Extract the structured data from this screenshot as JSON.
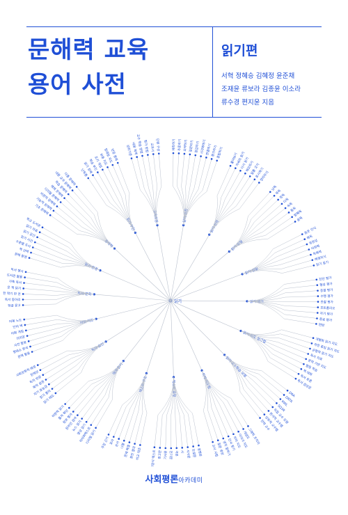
{
  "book": {
    "title_lines": [
      "문해력 교육",
      "용어 사전"
    ],
    "subtitle": "읽기편",
    "author_lines": [
      "서혁 정혜승 김혜정 윤준채",
      "조재윤 류보라 김종윤 이소라",
      "류수경 편지윤 지음"
    ],
    "publisher_main": "사회평론",
    "publisher_sub": "아카데미"
  },
  "colors": {
    "brand": "#1f4fd6",
    "branch_line": "#b8bfcc",
    "background": "#ffffff"
  },
  "diagram": {
    "root": "읽기",
    "branches": [
      {
        "label": "읽기 과정",
        "leaves": [
          "예측하기",
          "추론하기",
          "요약하기",
          "질문하기",
          "점검하기",
          "시각화하기",
          "연결하기",
          "평가하기",
          "종합하기"
        ]
      },
      {
        "label": "읽기 전략",
        "leaves": [
          "훑어보기",
          "자세히 읽기",
          "다시 읽기",
          "메모하기",
          "밑줄 긋기",
          "표시하기",
          "정리하기"
        ]
      },
      {
        "label": "읽기 유형",
        "leaves": [
          "낭독",
          "묵독",
          "정독",
          "다독",
          "속독",
          "통독",
          "발췌독",
          "윤독"
        ]
      },
      {
        "label": "읽기 발달",
        "leaves": [
          "음운 인식",
          "해독",
          "유창성",
          "어휘력",
          "독해력",
          "배경지식",
          "읽기 동기"
        ]
      },
      {
        "label": "읽기 평가",
        "leaves": [
          "진단 평가",
          "형성 평가",
          "총괄 평가",
          "수행 평가",
          "관찰 평가",
          "포트폴리오",
          "자기 평가",
          "동료 평가",
          "면담"
        ]
      },
      {
        "label": "읽기 지도 접근법",
        "leaves": [
          "개별화 읽기 지도",
          "과정 중심 읽기 지도",
          "균형적 읽기 지도",
          "독서 치료",
          "문학 기반 지도",
          "협동 학습",
          "책 대화",
          "독서 토론",
          "독서 감상문"
        ]
      },
      {
        "label": "읽기 교수학습 모형",
        "leaves": [
          "DRA",
          "DRTA",
          "KWL",
          "SQ3R",
          "직접 교수 모형",
          "현시적 교수법",
          "상보적 교수법",
          "전략 교수"
        ]
      },
      {
        "label": "이해 지도법",
        "leaves": [
          "그래픽 조직자",
          "개념도",
          "이야기 지도",
          "의미 지도",
          "단서 찾기",
          "생각 말하기",
          "질문 생성",
          "교사 시범"
        ]
      },
      {
        "label": "텍스트 유형",
        "leaves": [
          "설명문",
          "논설문",
          "서사문",
          "시",
          "극본",
          "전기문",
          "기사문",
          "광고문",
          "복합양식 텍스트"
        ]
      },
      {
        "label": "텍스트 구조",
        "leaves": [
          "비교 대조",
          "원인 결과",
          "문제 해결",
          "나열",
          "순서",
          "묘사",
          "주장 근거"
        ]
      },
      {
        "label": "매체 읽기",
        "leaves": [
          "디지털 읽기",
          "하이퍼텍스트",
          "영상 읽기",
          "뉴스 읽기",
          "온라인 검색",
          "정보 평가",
          "출처 확인",
          "비판적 읽기"
        ]
      },
      {
        "label": "독자 요인",
        "leaves": [
          "읽기 태도",
          "읽기 흥미",
          "자기 효능감",
          "목적 설정",
          "독자 반응",
          "정체성",
          "사회문화적 배경"
        ]
      },
      {
        "label": "어휘 지도",
        "leaves": [
          "문맥 활용",
          "형태소 분석",
          "사전 활용",
          "의미망",
          "어휘 게임",
          "단어 벽",
          "어휘 노트"
        ]
      },
      {
        "label": "독서 문화",
        "leaves": [
          "학급 문고",
          "독서 동아리",
          "한 학기 한 권",
          "온 책 읽기",
          "가족 독서",
          "도서관 활용",
          "독서 행사"
        ]
      },
      {
        "label": "읽기 환경",
        "leaves": [
          "문해 환경",
          "책 선택",
          "수준별 도서",
          "읽기 시간",
          "읽기 공간",
          "읽기 자료",
          "학교 도서관"
        ]
      },
      {
        "label": "문해력",
        "leaves": [
          "기초 문해력",
          "기능적 문해력",
          "비판적 문해력",
          "디지털 문해력",
          "매체 문해력",
          "학습 문해력",
          "내용 교과 문해력",
          "다중 문해력"
        ]
      },
      {
        "label": "읽기 부진",
        "leaves": [
          "난독증",
          "읽기 장애",
          "학습 부진",
          "조기 개입",
          "보충 지도",
          "일대일 지도",
          "반응 중재"
        ]
      },
      {
        "label": "교육과정",
        "leaves": [
          "성취기준",
          "내용 체계",
          "교수 학습 방법",
          "평가 방법",
          "교과서",
          "단원 구성"
        ]
      }
    ]
  }
}
